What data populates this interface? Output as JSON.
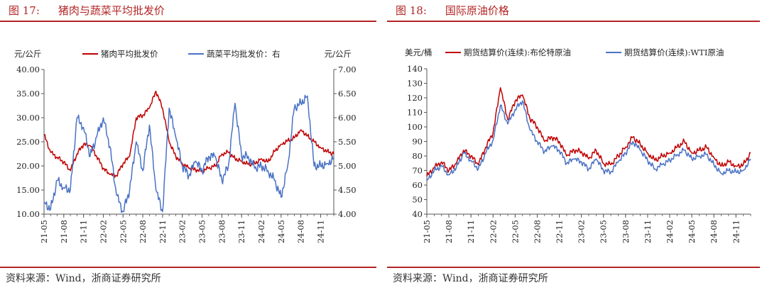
{
  "left": {
    "fig_number": "图 17:",
    "fig_title": "猪肉与蔬菜平均批发价",
    "source": "资料来源：Wind，浙商证券研究所",
    "chart_data": {
      "type": "line",
      "y_left_unit": "元/公斤",
      "y_right_unit": "元/公斤",
      "ylim_left": [
        10,
        40
      ],
      "ylim_right": [
        4,
        7
      ],
      "yticks_left": [
        "10.00",
        "15.00",
        "20.00",
        "25.00",
        "30.00",
        "35.00",
        "40.00"
      ],
      "yticks_right": [
        "4.00",
        "4.50",
        "5.00",
        "5.50",
        "6.00",
        "6.50",
        "7.00"
      ],
      "x_range": [
        "2021-05",
        "2025-01"
      ],
      "xticks": [
        "21-05",
        "21-08",
        "21-11",
        "22-02",
        "22-05",
        "22-08",
        "22-11",
        "23-02",
        "23-05",
        "23-08",
        "23-11",
        "24-02",
        "24-05",
        "24-08",
        "24-11"
      ],
      "grid": false,
      "legend": "top",
      "series": [
        {
          "name": "猪肉平均批发价",
          "axis": "left",
          "color": "#c00000",
          "x": [
            "2021-05",
            "2021-06",
            "2021-07",
            "2021-08",
            "2021-09",
            "2021-10",
            "2021-11",
            "2021-12",
            "2022-01",
            "2022-02",
            "2022-03",
            "2022-04",
            "2022-05",
            "2022-06",
            "2022-07",
            "2022-08",
            "2022-09",
            "2022-10",
            "2022-11",
            "2022-12",
            "2023-01",
            "2023-02",
            "2023-03",
            "2023-04",
            "2023-05",
            "2023-06",
            "2023-07",
            "2023-08",
            "2023-09",
            "2023-10",
            "2023-11",
            "2023-12",
            "2024-01",
            "2024-02",
            "2024-03",
            "2024-04",
            "2024-05",
            "2024-06",
            "2024-07",
            "2024-08",
            "2024-09",
            "2024-10",
            "2024-11",
            "2024-12",
            "2025-01"
          ],
          "y": [
            26.5,
            22.8,
            21.8,
            20.8,
            19.0,
            22.5,
            24.5,
            24.2,
            22.0,
            19.5,
            18.2,
            18.0,
            20.5,
            22.0,
            30.0,
            30.5,
            32.0,
            35.5,
            32.0,
            25.0,
            22.0,
            20.5,
            19.5,
            19.2,
            19.0,
            19.5,
            20.0,
            22.5,
            22.8,
            21.5,
            21.0,
            20.3,
            20.5,
            21.5,
            20.8,
            23.0,
            24.5,
            25.2,
            25.8,
            27.5,
            26.2,
            25.0,
            23.8,
            23.0,
            22.5
          ]
        },
        {
          "name": "蔬菜平均批发价：右",
          "axis": "right",
          "color": "#4a72c4",
          "x": [
            "2021-05",
            "2021-06",
            "2021-07",
            "2021-08",
            "2021-09",
            "2021-10",
            "2021-11",
            "2021-12",
            "2022-01",
            "2022-02",
            "2022-03",
            "2022-04",
            "2022-05",
            "2022-06",
            "2022-07",
            "2022-08",
            "2022-09",
            "2022-10",
            "2022-11",
            "2022-12",
            "2023-01",
            "2023-02",
            "2023-03",
            "2023-04",
            "2023-05",
            "2023-06",
            "2023-07",
            "2023-08",
            "2023-09",
            "2023-10",
            "2023-11",
            "2023-12",
            "2024-01",
            "2024-02",
            "2024-03",
            "2024-04",
            "2024-05",
            "2024-06",
            "2024-07",
            "2024-08",
            "2024-09",
            "2024-10",
            "2024-11",
            "2024-12",
            "2025-01"
          ],
          "y": [
            4.25,
            4.1,
            4.7,
            4.55,
            4.5,
            6.0,
            5.8,
            5.2,
            5.6,
            6.0,
            5.4,
            4.4,
            4.05,
            4.5,
            5.5,
            4.9,
            5.85,
            4.5,
            4.05,
            6.2,
            5.6,
            5.0,
            4.8,
            5.1,
            4.9,
            5.2,
            5.2,
            4.7,
            5.0,
            6.3,
            5.2,
            5.2,
            4.95,
            5.0,
            4.9,
            4.7,
            4.35,
            5.0,
            6.2,
            6.3,
            6.45,
            5.0,
            5.0,
            5.05,
            5.15
          ]
        }
      ]
    }
  },
  "right": {
    "fig_number": "图 18:",
    "fig_title": "国际原油价格",
    "source": "资料来源：Wind，浙商证券研究所",
    "chart_data": {
      "type": "line",
      "y_unit": "美元/桶",
      "ylim": [
        40,
        140
      ],
      "yticks": [
        "40",
        "50",
        "60",
        "70",
        "80",
        "90",
        "100",
        "110",
        "120",
        "130",
        "140"
      ],
      "x_range": [
        "2021-05",
        "2025-01"
      ],
      "xticks": [
        "21-05",
        "21-08",
        "21-11",
        "22-02",
        "22-05",
        "22-08",
        "22-11",
        "23-02",
        "23-05",
        "23-08",
        "23-11",
        "24-02",
        "24-05",
        "24-08",
        "24-11"
      ],
      "grid": false,
      "legend": "top",
      "series": [
        {
          "name": "期货结算价(连续):布伦特原油",
          "color": "#c00000",
          "x": [
            "2021-05",
            "2021-06",
            "2021-07",
            "2021-08",
            "2021-09",
            "2021-10",
            "2021-11",
            "2021-12",
            "2022-01",
            "2022-02",
            "2022-03",
            "2022-04",
            "2022-05",
            "2022-06",
            "2022-07",
            "2022-08",
            "2022-09",
            "2022-10",
            "2022-11",
            "2022-12",
            "2023-01",
            "2023-02",
            "2023-03",
            "2023-04",
            "2023-05",
            "2023-06",
            "2023-07",
            "2023-08",
            "2023-09",
            "2023-10",
            "2023-11",
            "2023-12",
            "2024-01",
            "2024-02",
            "2024-03",
            "2024-04",
            "2024-05",
            "2024-06",
            "2024-07",
            "2024-08",
            "2024-09",
            "2024-10",
            "2024-11",
            "2024-12",
            "2025-01"
          ],
          "y": [
            66,
            72,
            76,
            70,
            75,
            84,
            80,
            74,
            86,
            96,
            127,
            105,
            118,
            122,
            106,
            100,
            90,
            93,
            90,
            80,
            84,
            83,
            78,
            84,
            75,
            74,
            80,
            86,
            93,
            88,
            82,
            77,
            80,
            82,
            86,
            90,
            82,
            84,
            86,
            79,
            73,
            76,
            73,
            74,
            82
          ]
        },
        {
          "name": "期货结算价(连续):WTI原油",
          "color": "#4a72c4",
          "x": [
            "2021-05",
            "2021-06",
            "2021-07",
            "2021-08",
            "2021-09",
            "2021-10",
            "2021-11",
            "2021-12",
            "2022-01",
            "2022-02",
            "2022-03",
            "2022-04",
            "2022-05",
            "2022-06",
            "2022-07",
            "2022-08",
            "2022-09",
            "2022-10",
            "2022-11",
            "2022-12",
            "2023-01",
            "2023-02",
            "2023-03",
            "2023-04",
            "2023-05",
            "2023-06",
            "2023-07",
            "2023-08",
            "2023-09",
            "2023-10",
            "2023-11",
            "2023-12",
            "2024-01",
            "2024-02",
            "2024-03",
            "2024-04",
            "2024-05",
            "2024-06",
            "2024-07",
            "2024-08",
            "2024-09",
            "2024-10",
            "2024-11",
            "2024-12",
            "2025-01"
          ],
          "y": [
            63,
            70,
            73,
            67,
            72,
            82,
            77,
            71,
            82,
            91,
            115,
            102,
            112,
            118,
            98,
            90,
            83,
            87,
            84,
            75,
            78,
            76,
            71,
            78,
            70,
            69,
            76,
            82,
            90,
            84,
            77,
            71,
            74,
            77,
            81,
            84,
            78,
            80,
            81,
            74,
            68,
            70,
            69,
            70,
            78
          ]
        }
      ]
    }
  }
}
